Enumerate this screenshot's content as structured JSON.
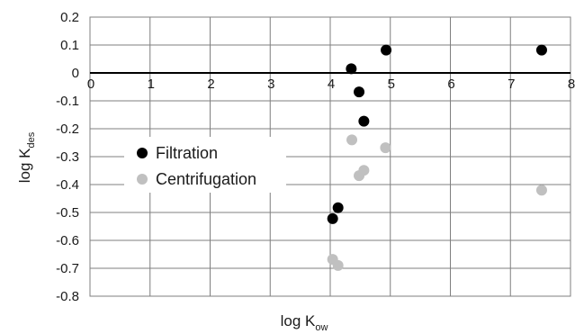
{
  "chart_data": {
    "type": "scatter",
    "title": "",
    "xlabel": {
      "main": "log K",
      "sub": "ow"
    },
    "ylabel": {
      "main": "log K",
      "sub": "des"
    },
    "xlim": [
      0,
      8
    ],
    "ylim": [
      -0.8,
      0.2
    ],
    "x_ticks": [
      0,
      1,
      2,
      3,
      4,
      5,
      6,
      7,
      8
    ],
    "x_tick_labels": [
      "0",
      "1",
      "2",
      "3",
      "4",
      "5",
      "6",
      "7",
      "8"
    ],
    "y_ticks": [
      0.2,
      0.1,
      0,
      -0.1,
      -0.2,
      -0.3,
      -0.4,
      -0.5,
      -0.6,
      -0.7,
      -0.8
    ],
    "y_tick_labels": [
      "0.2",
      "0.1",
      "0",
      "-0.1",
      "-0.2",
      "-0.3",
      "-0.4",
      "-0.5",
      "-0.6",
      "-0.7",
      "-0.8"
    ],
    "grid": true,
    "legend_position": "left-middle",
    "series": [
      {
        "name": "Filtration",
        "color": "#000000",
        "points": [
          {
            "x": 4.35,
            "y": 0.015
          },
          {
            "x": 4.93,
            "y": 0.082
          },
          {
            "x": 7.52,
            "y": 0.082
          },
          {
            "x": 4.48,
            "y": -0.068
          },
          {
            "x": 4.56,
            "y": -0.173
          },
          {
            "x": 4.13,
            "y": -0.483
          },
          {
            "x": 4.04,
            "y": -0.522
          }
        ]
      },
      {
        "name": "Centrifugation",
        "color": "#c0c0c0",
        "points": [
          {
            "x": 4.36,
            "y": -0.24
          },
          {
            "x": 4.92,
            "y": -0.268
          },
          {
            "x": 4.48,
            "y": -0.368
          },
          {
            "x": 4.56,
            "y": -0.349
          },
          {
            "x": 7.52,
            "y": -0.42
          },
          {
            "x": 4.04,
            "y": -0.668
          },
          {
            "x": 4.13,
            "y": -0.69
          }
        ]
      }
    ]
  }
}
